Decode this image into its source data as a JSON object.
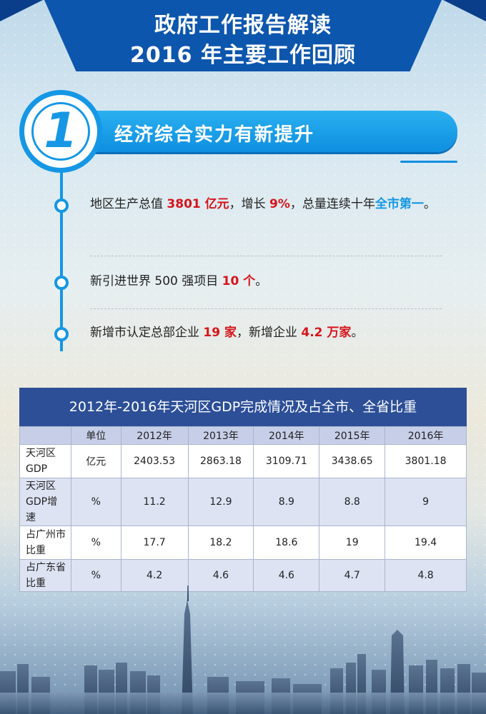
{
  "header": {
    "title_line1": "政府工作报告解读",
    "title_line2": "2016 年主要工作回顾"
  },
  "section": {
    "number": "1",
    "title": "经济综合实力有新提升"
  },
  "bullets": {
    "b1": {
      "pre": "地区生产总值 ",
      "val1": "3801 亿元",
      "mid1": "，增长 ",
      "val2": "9%",
      "mid2": "，总量连续十年",
      "val3": "全市第一",
      "post": "。"
    },
    "b2": {
      "pre": "新引进世界 500 强项目 ",
      "val1": "10 个",
      "post": "。"
    },
    "b3": {
      "pre": "新增市认定总部企业 ",
      "val1": "19 家",
      "mid1": "，新增企业 ",
      "val2": "4.2 万家",
      "post": "。"
    }
  },
  "table": {
    "title": "2012年-2016年天河区GDP完成情况及占全市、全省比重",
    "headers": [
      "",
      "单位",
      "2012年",
      "2013年",
      "2014年",
      "2015年",
      "2016年"
    ],
    "rows": [
      {
        "label_l1": "天河区",
        "label_l2": "GDP",
        "label_l3": "",
        "unit": "亿元",
        "values": [
          "2403.53",
          "2863.18",
          "3109.71",
          "3438.65",
          "3801.18"
        ]
      },
      {
        "label_l1": "天河区",
        "label_l2": "GDP增",
        "label_l3": "速",
        "unit": "%",
        "values": [
          "11.2",
          "12.9",
          "8.9",
          "8.8",
          "9"
        ]
      },
      {
        "label_l1": "占广州市",
        "label_l2": "比重",
        "label_l3": "",
        "unit": "%",
        "values": [
          "17.7",
          "18.2",
          "18.6",
          "19",
          "19.4"
        ]
      },
      {
        "label_l1": "占广东省",
        "label_l2": "比重",
        "label_l3": "",
        "unit": "%",
        "values": [
          "4.2",
          "4.6",
          "4.6",
          "4.7",
          "4.8"
        ]
      }
    ]
  },
  "colors": {
    "primary_blue": "#1597e5",
    "banner_blue": "#0d56ad",
    "table_header": "#2c4f97",
    "highlight_red": "#d6141b"
  }
}
